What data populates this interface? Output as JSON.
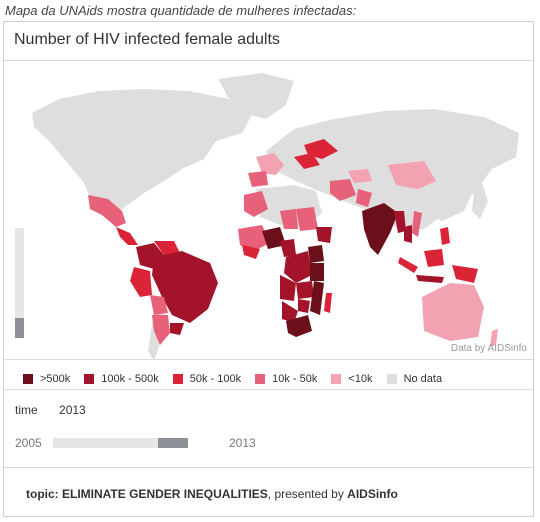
{
  "caption": "Mapa da UNAids mostra quantidade de mulheres infectadas:",
  "title": "Number of HIV infected female adults",
  "credit": "Data by AIDSinfo",
  "colors": {
    "gt500k": "#6b0f1a",
    "100k_500k": "#a3132a",
    "50k_100k": "#dc2439",
    "10k_50k": "#e8617a",
    "lt10k": "#f2a2b1",
    "no_data": "#dedede"
  },
  "legend": [
    {
      "label": ">500k",
      "color": "#6b0f1a"
    },
    {
      "label": "100k - 500k",
      "color": "#a3132a"
    },
    {
      "label": "50k - 100k",
      "color": "#dc2439"
    },
    {
      "label": "10k - 50k",
      "color": "#e8617a"
    },
    {
      "label": "<10k",
      "color": "#f2a2b1"
    },
    {
      "label": "No data",
      "color": "#dedede"
    }
  ],
  "time": {
    "label": "time",
    "value": "2013",
    "range_start": "2005",
    "range_end": "2013",
    "position": 0.78
  },
  "footer": {
    "topic_prefix": "topic: ELIMINATE GENDER INEQUALITIES",
    "presented_by": ", presented by ",
    "source": "AIDSinfo"
  }
}
